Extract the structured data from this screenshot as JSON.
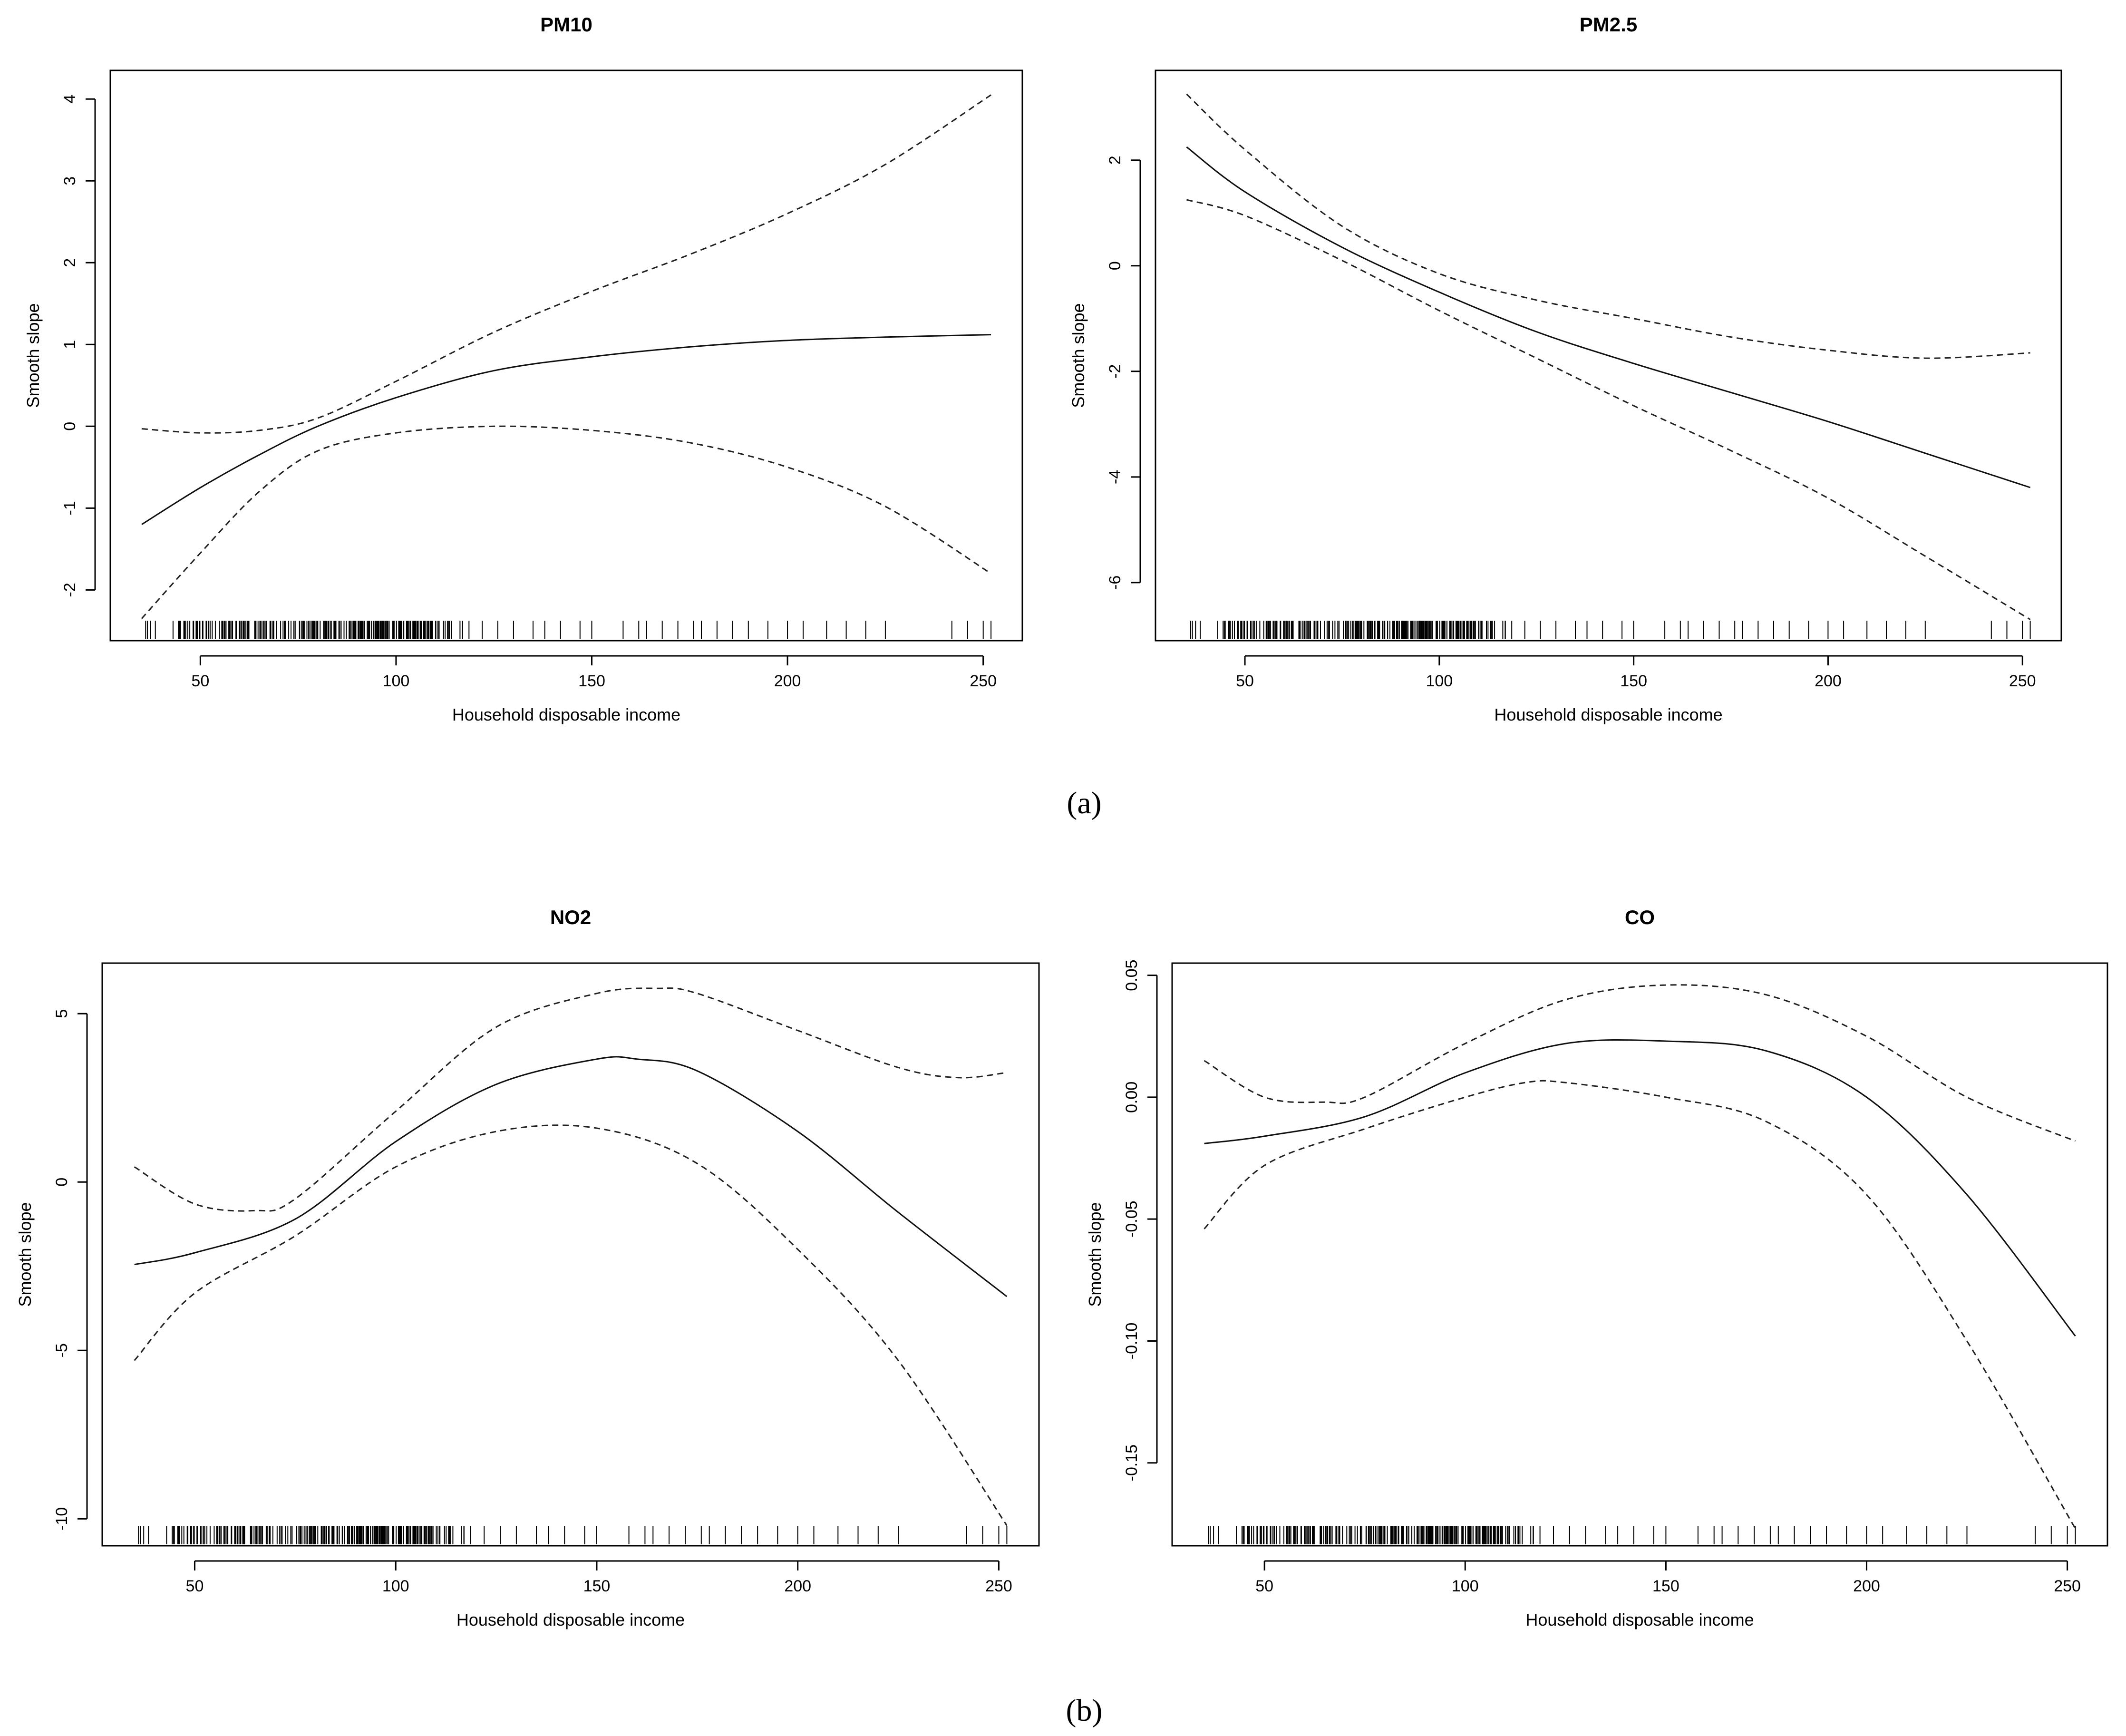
{
  "figure": {
    "caption_a": "(a)",
    "caption_b": "(b)"
  },
  "chart_data": [
    {
      "id": "pm10",
      "type": "line",
      "title": "PM10",
      "xlabel": "Household disposable income",
      "ylabel": "Smooth slope",
      "xlim": [
        27,
        260
      ],
      "ylim": [
        -2.62,
        4.35
      ],
      "xticks": [
        50,
        100,
        150,
        200,
        250
      ],
      "xtick_labels": [
        "50",
        "100",
        "150",
        "200",
        "250"
      ],
      "yticks": [
        -2,
        -1,
        0,
        1,
        2,
        3,
        4
      ],
      "ytick_labels": [
        "-2",
        "-1",
        "0",
        "1",
        "2",
        "3",
        "4"
      ],
      "series": [
        {
          "name": "estimate",
          "style": "solid",
          "x": [
            35,
            50,
            65,
            80,
            100,
            125,
            150,
            175,
            200,
            225,
            252
          ],
          "y": [
            -1.2,
            -0.75,
            -0.35,
            0.0,
            0.35,
            0.68,
            0.85,
            0.97,
            1.05,
            1.09,
            1.12
          ]
        },
        {
          "name": "upper",
          "style": "dashed",
          "x": [
            35,
            50,
            65,
            80,
            100,
            125,
            150,
            175,
            200,
            225,
            252
          ],
          "y": [
            -0.03,
            -0.08,
            -0.05,
            0.1,
            0.55,
            1.15,
            1.65,
            2.1,
            2.6,
            3.2,
            4.05
          ]
        },
        {
          "name": "lower",
          "style": "dashed",
          "x": [
            35,
            50,
            65,
            80,
            100,
            125,
            150,
            175,
            200,
            225,
            252
          ],
          "y": [
            -2.35,
            -1.55,
            -0.8,
            -0.3,
            -0.08,
            0.0,
            -0.05,
            -0.2,
            -0.5,
            -0.98,
            -1.8
          ]
        }
      ]
    },
    {
      "id": "pm25",
      "type": "line",
      "title": "PM2.5",
      "xlabel": "Household disposable income",
      "ylabel": "Smooth slope",
      "xlim": [
        27,
        260
      ],
      "ylim": [
        -7.1,
        3.7
      ],
      "xticks": [
        50,
        100,
        150,
        200,
        250
      ],
      "xtick_labels": [
        "50",
        "100",
        "150",
        "200",
        "250"
      ],
      "yticks": [
        -6,
        -4,
        -2,
        0,
        2
      ],
      "ytick_labels": [
        "-6",
        "-4",
        "-2",
        "0",
        "2"
      ],
      "series": [
        {
          "name": "estimate",
          "style": "solid",
          "x": [
            35,
            50,
            75,
            100,
            125,
            150,
            175,
            200,
            225,
            252
          ],
          "y": [
            2.25,
            1.4,
            0.35,
            -0.5,
            -1.25,
            -1.85,
            -2.4,
            -2.95,
            -3.55,
            -4.2
          ]
        },
        {
          "name": "upper",
          "style": "dashed",
          "x": [
            35,
            50,
            75,
            100,
            125,
            150,
            175,
            200,
            225,
            252
          ],
          "y": [
            3.25,
            2.2,
            0.75,
            -0.15,
            -0.65,
            -1.0,
            -1.35,
            -1.6,
            -1.75,
            -1.65
          ]
        },
        {
          "name": "lower",
          "style": "dashed",
          "x": [
            35,
            50,
            75,
            100,
            125,
            150,
            175,
            200,
            225,
            252
          ],
          "y": [
            1.25,
            0.95,
            0.1,
            -0.85,
            -1.75,
            -2.65,
            -3.5,
            -4.4,
            -5.5,
            -6.7
          ]
        }
      ]
    },
    {
      "id": "no2",
      "type": "line",
      "title": "NO2",
      "xlabel": "Household disposable income",
      "ylabel": "Smooth slope",
      "xlim": [
        27,
        260
      ],
      "ylim": [
        -10.8,
        6.5
      ],
      "xticks": [
        50,
        100,
        150,
        200,
        250
      ],
      "xtick_labels": [
        "50",
        "100",
        "150",
        "200",
        "250"
      ],
      "yticks": [
        -10,
        -5,
        0,
        5
      ],
      "ytick_labels": [
        "-10",
        "-5",
        "0",
        "5"
      ],
      "series": [
        {
          "name": "estimate",
          "style": "solid",
          "x": [
            35,
            50,
            75,
            100,
            125,
            150,
            160,
            175,
            200,
            225,
            252
          ],
          "y": [
            -2.45,
            -2.1,
            -1.1,
            1.2,
            2.9,
            3.65,
            3.65,
            3.3,
            1.5,
            -0.9,
            -3.4
          ]
        },
        {
          "name": "upper",
          "style": "dashed",
          "x": [
            35,
            50,
            65,
            75,
            100,
            125,
            150,
            165,
            175,
            200,
            225,
            240,
            252
          ],
          "y": [
            0.45,
            -0.65,
            -0.85,
            -0.5,
            2.1,
            4.6,
            5.6,
            5.75,
            5.6,
            4.5,
            3.4,
            3.1,
            3.25
          ]
        },
        {
          "name": "lower",
          "style": "dashed",
          "x": [
            35,
            50,
            75,
            100,
            125,
            150,
            175,
            200,
            225,
            252
          ],
          "y": [
            -5.3,
            -3.3,
            -1.6,
            0.45,
            1.5,
            1.6,
            0.55,
            -2.0,
            -5.3,
            -10.2
          ]
        }
      ]
    },
    {
      "id": "co",
      "type": "line",
      "title": "CO",
      "xlabel": "Household disposable income",
      "ylabel": "Smooth slope",
      "xlim": [
        27,
        260
      ],
      "ylim": [
        -0.184,
        0.055
      ],
      "xticks": [
        50,
        100,
        150,
        200,
        250
      ],
      "xtick_labels": [
        "50",
        "100",
        "150",
        "200",
        "250"
      ],
      "yticks": [
        -0.15,
        -0.1,
        -0.05,
        0.0,
        0.05
      ],
      "ytick_labels": [
        "-0.15",
        "-0.10",
        "-0.05",
        "0.00",
        "0.05"
      ],
      "series": [
        {
          "name": "estimate",
          "style": "solid",
          "x": [
            35,
            50,
            75,
            100,
            125,
            150,
            175,
            200,
            225,
            252
          ],
          "y": [
            -0.019,
            -0.016,
            -0.008,
            0.01,
            0.022,
            0.023,
            0.019,
            0.0,
            -0.04,
            -0.098
          ]
        },
        {
          "name": "upper",
          "style": "dashed",
          "x": [
            35,
            50,
            65,
            75,
            100,
            125,
            150,
            175,
            200,
            225,
            252
          ],
          "y": [
            0.015,
            0.0,
            -0.002,
            0.0,
            0.022,
            0.04,
            0.046,
            0.042,
            0.025,
            0.0,
            -0.018
          ]
        },
        {
          "name": "lower",
          "style": "dashed",
          "x": [
            35,
            50,
            75,
            100,
            115,
            125,
            150,
            175,
            200,
            225,
            252
          ],
          "y": [
            -0.054,
            -0.028,
            -0.013,
            0.0,
            0.006,
            0.006,
            0.0,
            -0.01,
            -0.04,
            -0.1,
            -0.177
          ]
        }
      ]
    }
  ],
  "rug": {
    "dense_range": [
      35,
      120
    ],
    "sparse_x": [
      122,
      126,
      130,
      135,
      138,
      142,
      147,
      150,
      158,
      162,
      164,
      168,
      172,
      176,
      178,
      182,
      186,
      190,
      195,
      200,
      204,
      210,
      215,
      220,
      225,
      242,
      246,
      250,
      252
    ]
  }
}
